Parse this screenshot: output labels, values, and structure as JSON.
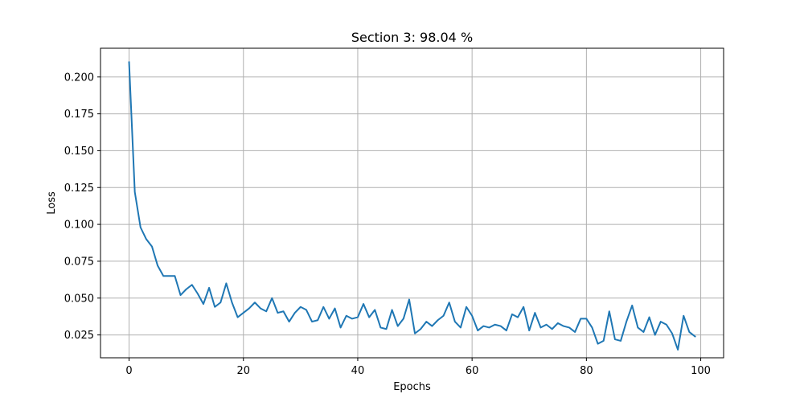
{
  "chart_data": {
    "type": "line",
    "title": "Section 3: 98.04 %",
    "xlabel": "Epochs",
    "ylabel": "Loss",
    "xlim": [
      -5,
      104
    ],
    "ylim": [
      0.0095,
      0.2195
    ],
    "xticks": [
      0,
      20,
      40,
      60,
      80,
      100
    ],
    "xtick_labels": [
      "0",
      "20",
      "40",
      "60",
      "80",
      "100"
    ],
    "yticks": [
      0.025,
      0.05,
      0.075,
      0.1,
      0.125,
      0.15,
      0.175,
      0.2
    ],
    "ytick_labels": [
      "0.025",
      "0.050",
      "0.075",
      "0.100",
      "0.125",
      "0.150",
      "0.175",
      "0.200"
    ],
    "grid": true,
    "series": [
      {
        "color": "#1f77b4",
        "x": [
          0,
          1,
          2,
          3,
          4,
          5,
          6,
          7,
          8,
          9,
          10,
          11,
          12,
          13,
          14,
          15,
          16,
          17,
          18,
          19,
          20,
          21,
          22,
          23,
          24,
          25,
          26,
          27,
          28,
          29,
          30,
          31,
          32,
          33,
          34,
          35,
          36,
          37,
          38,
          39,
          40,
          41,
          42,
          43,
          44,
          45,
          46,
          47,
          48,
          49,
          50,
          51,
          52,
          53,
          54,
          55,
          56,
          57,
          58,
          59,
          60,
          61,
          62,
          63,
          64,
          65,
          66,
          67,
          68,
          69,
          70,
          71,
          72,
          73,
          74,
          75,
          76,
          77,
          78,
          79,
          80,
          81,
          82,
          83,
          84,
          85,
          86,
          87,
          88,
          89,
          90,
          91,
          92,
          93,
          94,
          95,
          96,
          97,
          98,
          99
        ],
        "y": [
          0.21,
          0.122,
          0.098,
          0.09,
          0.085,
          0.072,
          0.065,
          0.065,
          0.065,
          0.052,
          0.056,
          0.059,
          0.053,
          0.046,
          0.057,
          0.044,
          0.047,
          0.06,
          0.047,
          0.037,
          0.04,
          0.043,
          0.047,
          0.043,
          0.041,
          0.05,
          0.04,
          0.041,
          0.034,
          0.04,
          0.044,
          0.042,
          0.034,
          0.035,
          0.044,
          0.036,
          0.043,
          0.03,
          0.038,
          0.036,
          0.037,
          0.046,
          0.037,
          0.042,
          0.03,
          0.029,
          0.042,
          0.031,
          0.036,
          0.049,
          0.026,
          0.029,
          0.034,
          0.031,
          0.035,
          0.038,
          0.047,
          0.034,
          0.03,
          0.044,
          0.038,
          0.028,
          0.031,
          0.03,
          0.032,
          0.031,
          0.028,
          0.039,
          0.037,
          0.044,
          0.028,
          0.04,
          0.03,
          0.032,
          0.029,
          0.033,
          0.031,
          0.03,
          0.027,
          0.036,
          0.036,
          0.03,
          0.019,
          0.021,
          0.041,
          0.022,
          0.021,
          0.034,
          0.045,
          0.03,
          0.027,
          0.037,
          0.025,
          0.034,
          0.032,
          0.026,
          0.015,
          0.038,
          0.027,
          0.024
        ]
      }
    ]
  }
}
